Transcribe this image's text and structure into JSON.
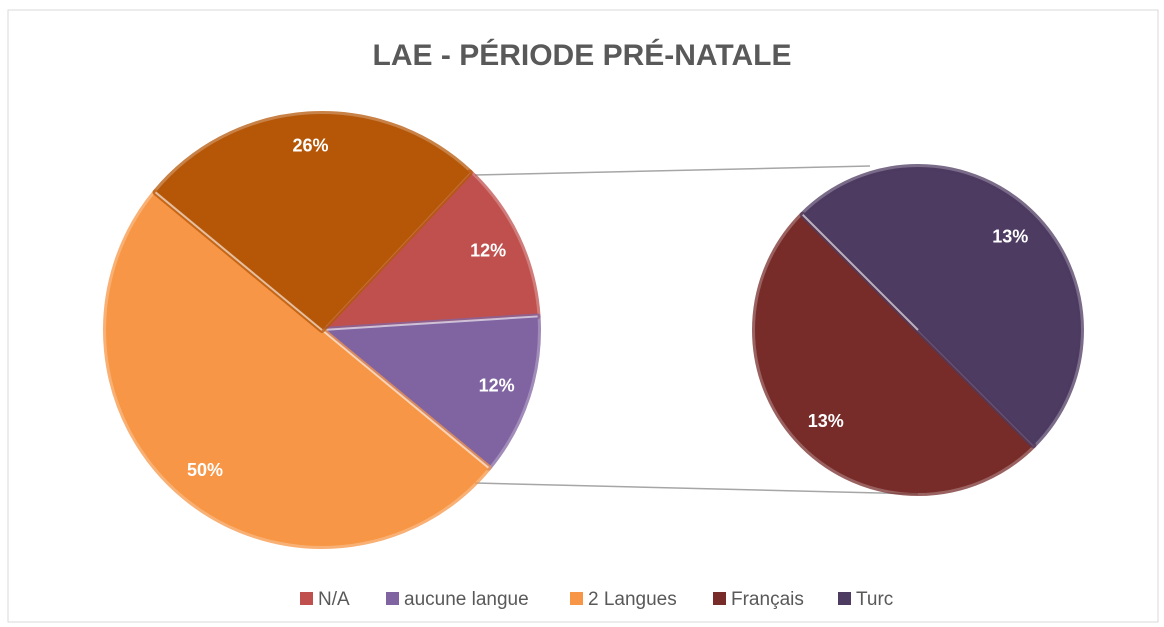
{
  "chart_data": {
    "type": "pie_of_pie",
    "title": "LAE - PÉRIODE PRÉ-NATALE",
    "categories": [
      "N/A",
      "aucune langue",
      "2 Langues",
      null
    ],
    "values": [
      12,
      12,
      50,
      26
    ],
    "value_labels": [
      "12%",
      "12%",
      "50%",
      "26%"
    ],
    "colors": [
      "#c0504d",
      "#8064a2",
      "#f79646",
      "#b65708"
    ],
    "secondary": {
      "categories": [
        "Français",
        "Turc"
      ],
      "values": [
        13,
        13
      ],
      "value_labels": [
        "13%",
        "13%"
      ],
      "colors": [
        "#772c2a",
        "#4d3b62"
      ]
    },
    "legend": "bottom"
  }
}
